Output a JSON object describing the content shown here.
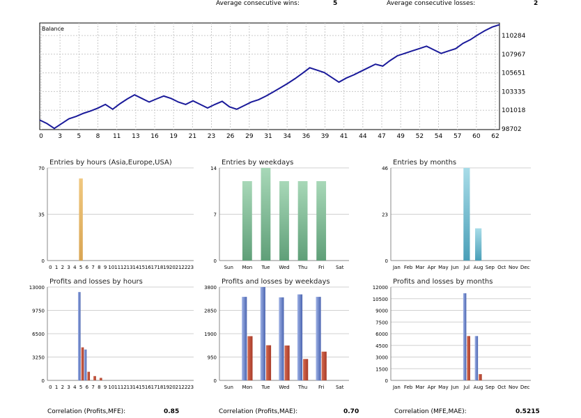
{
  "stats": {
    "wins_label": "Average consecutive wins:",
    "wins_value": "5",
    "losses_label": "Average consecutive losses:",
    "losses_value": "2"
  },
  "correlations": {
    "mfe_label": "Correlation (Profits,MFE):",
    "mfe_value": "0.85",
    "mae_label": "Correlation (Profits,MAE):",
    "mae_value": "0.70",
    "mfe_mae_label": "Correlation (MFE,MAE):",
    "mfe_mae_value": "0.5215"
  },
  "colors": {
    "balance_line": "#1a1a9a",
    "grid": "#c8c8c8",
    "hours_bar": "#d9a552",
    "weekday_bar": "#5f9f78",
    "month_bar": "#4a9fb8",
    "profit_bar": "#4a64b0",
    "loss_bar": "#a83a28"
  },
  "chart_data": [
    {
      "type": "line",
      "title": "Balance",
      "x": [
        0,
        1,
        2,
        3,
        4,
        5,
        6,
        7,
        8,
        9,
        10,
        11,
        12,
        13,
        14,
        15,
        16,
        17,
        18,
        19,
        20,
        21,
        22,
        23,
        24,
        25,
        26,
        27,
        28,
        29,
        30,
        31,
        32,
        33,
        34,
        35,
        36,
        37,
        38,
        39,
        40,
        41,
        42,
        43,
        44,
        45,
        46,
        47,
        48,
        49,
        50,
        51,
        52,
        53,
        54,
        55,
        56,
        57,
        58,
        59,
        60,
        61,
        62,
        63
      ],
      "series": [
        {
          "values": [
            100700,
            100550,
            100350,
            100550,
            100750,
            100850,
            100980,
            101080,
            101200,
            101350,
            101150,
            101380,
            101580,
            101750,
            101600,
            101450,
            101580,
            101700,
            101600,
            101450,
            101350,
            101500,
            101350,
            101200,
            101350,
            101480,
            101250,
            101150,
            101300,
            101450,
            101550,
            101700,
            101870,
            102050,
            102230,
            102430,
            102650,
            102880,
            102780,
            102680,
            102480,
            102280,
            102450,
            102580,
            102730,
            102880,
            103030,
            102950,
            103180,
            103380,
            103480,
            103580,
            103680,
            103780,
            103630,
            103480,
            103580,
            103680,
            103900,
            104050,
            104250,
            104430,
            104580,
            104680
          ]
        }
      ],
      "x_ticks": [
        "0",
        "3",
        "5",
        "8",
        "11",
        "13",
        "16",
        "19",
        "21",
        "23",
        "26",
        "29",
        "31",
        "34",
        "36",
        "39",
        "41",
        "44",
        "47",
        "49",
        "52",
        "54",
        "57",
        "60",
        "62"
      ],
      "y_ticks": [
        "110284",
        "107967",
        "105651",
        "103335",
        "101018",
        "98702"
      ],
      "xlim": [
        0,
        63
      ],
      "ylim": [
        100300,
        104750
      ],
      "grid": true
    },
    {
      "type": "bar",
      "title": "Entries by hours (Asia,Europe,USA)",
      "categories": [
        "0",
        "1",
        "2",
        "3",
        "4",
        "5",
        "6",
        "7",
        "8",
        "9",
        "10",
        "11",
        "12",
        "13",
        "14",
        "15",
        "16",
        "17",
        "18",
        "19",
        "20",
        "21",
        "22",
        "23"
      ],
      "values": [
        0,
        0,
        0,
        0,
        0,
        62,
        0,
        0,
        0,
        0,
        0,
        0,
        0,
        0,
        0,
        0,
        0,
        0,
        0,
        0,
        0,
        0,
        0,
        0
      ],
      "y_ticks": [
        "70",
        "35",
        "0"
      ],
      "ylim": [
        0,
        70
      ]
    },
    {
      "type": "bar",
      "title": "Entries by weekdays",
      "categories": [
        "Sun",
        "Mon",
        "Tue",
        "Wed",
        "Thu",
        "Fri",
        "Sat"
      ],
      "values": [
        0,
        12,
        14,
        12,
        12,
        12,
        0
      ],
      "y_ticks": [
        "14",
        "7",
        "0"
      ],
      "ylim": [
        0,
        14
      ]
    },
    {
      "type": "bar",
      "title": "Entries by months",
      "categories": [
        "Jan",
        "Feb",
        "Mar",
        "Apr",
        "May",
        "Jun",
        "Jul",
        "Aug",
        "Sep",
        "Oct",
        "Nov",
        "Dec"
      ],
      "values": [
        0,
        0,
        0,
        0,
        0,
        0,
        46,
        16,
        0,
        0,
        0,
        0
      ],
      "y_ticks": [
        "46",
        "23",
        "0"
      ],
      "ylim": [
        0,
        46
      ]
    },
    {
      "type": "bar",
      "title": "Profits and losses by hours",
      "categories": [
        "0",
        "1",
        "2",
        "3",
        "4",
        "5",
        "6",
        "7",
        "8",
        "9",
        "10",
        "11",
        "12",
        "13",
        "14",
        "15",
        "16",
        "17",
        "18",
        "19",
        "20",
        "21",
        "22",
        "23"
      ],
      "series": [
        {
          "name": "Profits",
          "values": [
            0,
            0,
            0,
            0,
            0,
            12300,
            4300,
            0,
            0,
            0,
            0,
            0,
            0,
            0,
            0,
            0,
            0,
            0,
            0,
            0,
            0,
            0,
            0,
            0
          ]
        },
        {
          "name": "Losses",
          "values": [
            0,
            0,
            0,
            0,
            0,
            4600,
            1200,
            600,
            350,
            0,
            0,
            0,
            0,
            0,
            0,
            0,
            0,
            0,
            0,
            0,
            0,
            0,
            0,
            0
          ]
        }
      ],
      "y_ticks": [
        "13000",
        "9750",
        "6500",
        "3250",
        "0"
      ],
      "ylim": [
        0,
        13000
      ]
    },
    {
      "type": "bar",
      "title": "Profits and losses by weekdays",
      "categories": [
        "Sun",
        "Mon",
        "Tue",
        "Wed",
        "Thu",
        "Fri",
        "Sat"
      ],
      "series": [
        {
          "name": "Profits",
          "values": [
            0,
            3400,
            3800,
            3380,
            3500,
            3400,
            0
          ]
        },
        {
          "name": "Losses",
          "values": [
            0,
            1800,
            1430,
            1420,
            870,
            1170,
            0
          ]
        }
      ],
      "y_ticks": [
        "3800",
        "2850",
        "1900",
        "950",
        "0"
      ],
      "ylim": [
        0,
        3800
      ]
    },
    {
      "type": "bar",
      "title": "Profits and losses by months",
      "categories": [
        "Jan",
        "Feb",
        "Mar",
        "Apr",
        "May",
        "Jun",
        "Jul",
        "Aug",
        "Sep",
        "Oct",
        "Nov",
        "Dec"
      ],
      "series": [
        {
          "name": "Profits",
          "values": [
            0,
            0,
            0,
            0,
            0,
            0,
            11200,
            5700,
            0,
            0,
            0,
            0
          ]
        },
        {
          "name": "Losses",
          "values": [
            0,
            0,
            0,
            0,
            0,
            0,
            5700,
            800,
            0,
            0,
            0,
            0
          ]
        }
      ],
      "y_ticks": [
        "12000",
        "10500",
        "9000",
        "7500",
        "6000",
        "4500",
        "3000",
        "1500",
        "0"
      ],
      "ylim": [
        0,
        12000
      ]
    }
  ]
}
